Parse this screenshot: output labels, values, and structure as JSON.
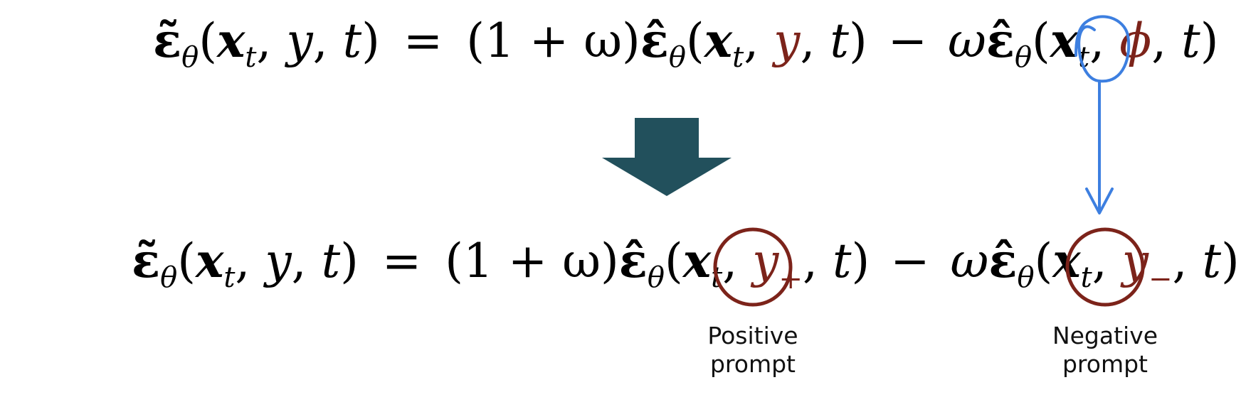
{
  "equation_top": {
    "lhs": [
      "ε̃",
      "θ",
      "(",
      "x",
      "t",
      ", ",
      "y",
      ", ",
      "t",
      ")"
    ],
    "op_eq": "=",
    "term1_coef": "(1 + ω)",
    "term1": [
      "ε̂",
      "θ",
      "(",
      "x",
      "t",
      ", ",
      "y",
      ", ",
      "t",
      ")"
    ],
    "op_minus": "−",
    "term2_coef": "ω",
    "term2": [
      "ε̂",
      "θ",
      "(",
      "x",
      "t",
      ", ",
      "ϕ",
      ", ",
      "t",
      ")"
    ]
  },
  "equation_bottom": {
    "lhs": [
      "ε̃",
      "θ",
      "(",
      "x",
      "t",
      ", ",
      "y",
      ", ",
      "t",
      ")"
    ],
    "op_eq": "=",
    "term1_coef": "(1 + ω)",
    "term1": [
      "ε̂",
      "θ",
      "(",
      "x",
      "t",
      ", ",
      "y",
      "+",
      ", ",
      "t",
      ")"
    ],
    "op_minus": "−",
    "term2_coef": "ω",
    "term2": [
      "ε̂",
      "θ",
      "(",
      "x",
      "t",
      ", ",
      "y",
      "−",
      ", ",
      "t",
      ")"
    ]
  },
  "labels": {
    "positive": [
      "Positive",
      "prompt"
    ],
    "negative": [
      "Negative",
      "prompt"
    ]
  },
  "colors": {
    "highlight_red": "#7c231a",
    "circle_red": "#7c231a",
    "blue_annotation": "#3d7fe0",
    "arrow_fill": "#22505c"
  }
}
